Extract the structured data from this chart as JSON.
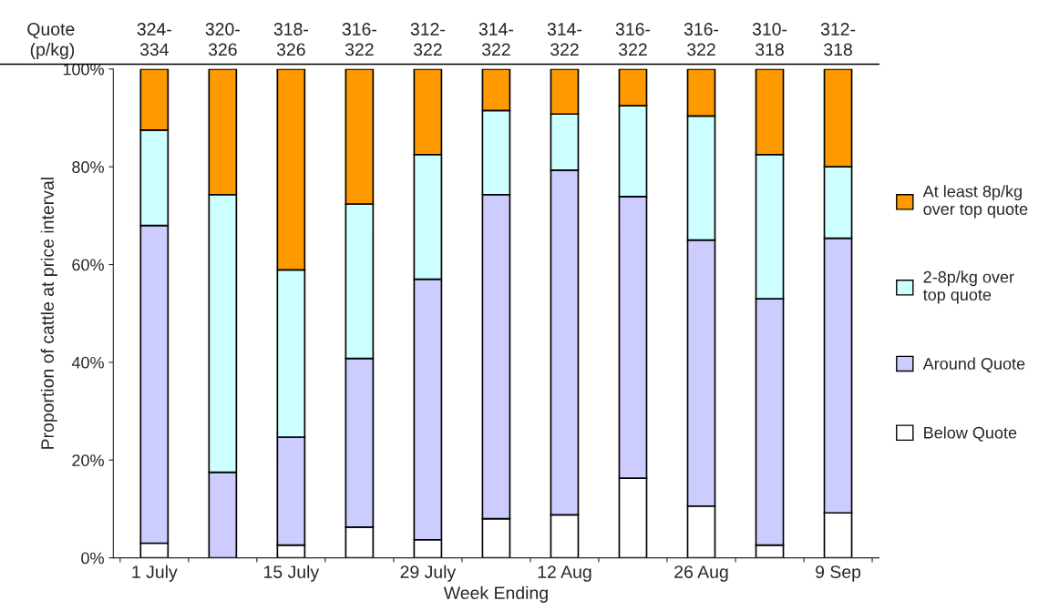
{
  "chart_data": {
    "type": "bar",
    "stacked": true,
    "xlabel": "Week Ending",
    "ylabel": "Proportion of cattle at price interval",
    "categories": [
      "1 July",
      null,
      "15 July",
      null,
      "29 July",
      null,
      "12 Aug",
      null,
      "26 Aug",
      null,
      "9 Sep"
    ],
    "series": [
      {
        "name": "Below Quote",
        "color": "#ffffff",
        "values": [
          3.0,
          0,
          2.6,
          6.3,
          3.7,
          8.0,
          8.8,
          16.3,
          10.6,
          2.6,
          9.2
        ]
      },
      {
        "name": "Around Quote",
        "color": "#ccccff",
        "values": [
          65.0,
          17.5,
          22.1,
          34.5,
          53.3,
          66.3,
          70.5,
          57.6,
          54.4,
          50.4,
          56.2
        ]
      },
      {
        "name": "2-8p/kg over\ntop quote",
        "color": "#ccffff",
        "values": [
          19.5,
          56.8,
          34.2,
          31.6,
          25.5,
          17.2,
          11.5,
          18.6,
          25.4,
          29.5,
          14.6
        ]
      },
      {
        "name": "At least 8p/kg\nover top quote",
        "color": "#ff9900",
        "values": [
          12.5,
          25.7,
          41.1,
          27.6,
          17.5,
          8.5,
          9.2,
          7.5,
          9.6,
          17.5,
          20.0
        ]
      }
    ],
    "annotations": [
      "Quote\n(p/kg)",
      "324-\n334",
      "320-\n326",
      "318-\n326",
      "316-\n322",
      "312-\n322",
      "314-\n322",
      "314-\n322",
      "316-\n322",
      "316-\n322",
      "310-\n318",
      "312-\n318"
    ],
    "ylim": [
      0,
      100
    ],
    "yticks": [
      {
        "value": 0,
        "label": "0%"
      },
      {
        "value": 20,
        "label": "20%"
      },
      {
        "value": 40,
        "label": "40%"
      },
      {
        "value": 60,
        "label": "60%"
      },
      {
        "value": 80,
        "label": "80%"
      },
      {
        "value": 100,
        "label": "100%"
      }
    ],
    "grid": false,
    "legend": "right"
  }
}
